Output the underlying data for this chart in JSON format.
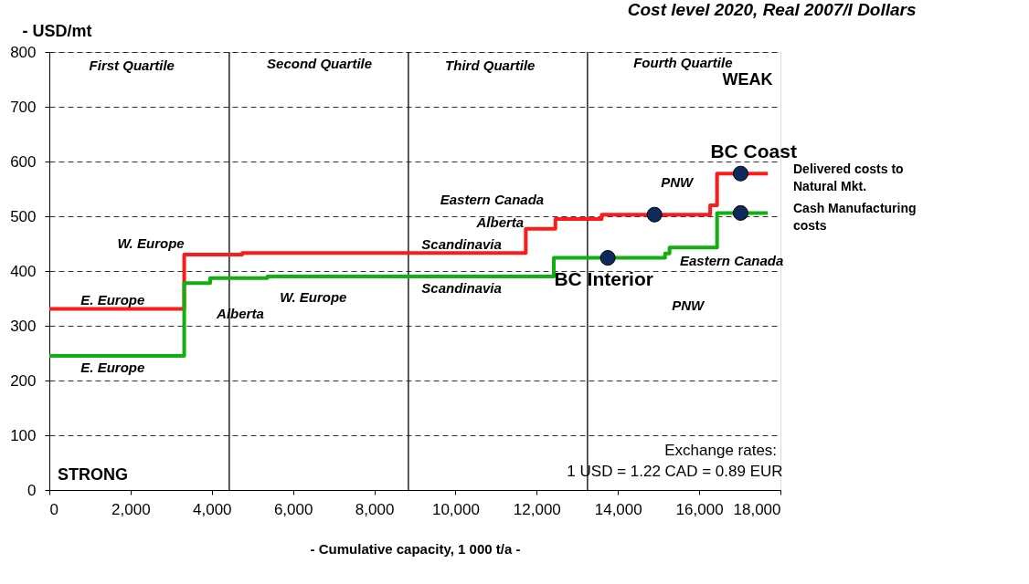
{
  "chart_data": {
    "type": "step",
    "subtitle": "Cost level 2020, Real 2007/I Dollars",
    "ylabel": "- USD/mt",
    "xlabel": "- Cumulative capacity, 1 000 t/a -",
    "xlim": [
      0,
      18000
    ],
    "ylim": [
      0,
      800
    ],
    "xticks": [
      0,
      {
        "value": 2000,
        "label": "2,000"
      },
      {
        "value": 4000,
        "label": "4,000"
      },
      {
        "value": 6000,
        "label": "6,000"
      },
      {
        "value": 8000,
        "label": "8,000"
      },
      {
        "value": 10000,
        "label": "10,000"
      },
      {
        "value": 12000,
        "label": "12,000"
      },
      {
        "value": 14000,
        "label": "14,000"
      },
      {
        "value": 16000,
        "label": "16,000"
      },
      {
        "value": 18000,
        "label": "18,000"
      }
    ],
    "yticks": [
      0,
      100,
      200,
      300,
      400,
      500,
      600,
      700,
      800
    ],
    "grid": "y",
    "legend": false,
    "line_style": "solid",
    "series": [
      {
        "name": "Delivered costs to Natural Mkt.",
        "color": "#ff1a1a",
        "x": [
          0,
          3320,
          4750,
          11730,
          12460,
          13600,
          16270,
          16440,
          17690
        ],
        "values": [
          331,
          430,
          433,
          477,
          495,
          503,
          520,
          578,
          578
        ]
      },
      {
        "name": "Cash Manufacturing costs",
        "color": "#10b010",
        "x": [
          0,
          3320,
          3960,
          5370,
          12420,
          15160,
          15270,
          16440,
          17690
        ],
        "values": [
          245,
          378,
          387,
          390,
          424,
          432,
          443,
          506,
          506
        ]
      },
      {
        "type": "scatter",
        "marker": "circle",
        "color": "#0e2a5c",
        "x": [
          13750,
          14900,
          17020,
          17020
        ],
        "values": [
          424,
          503,
          578,
          506
        ]
      }
    ],
    "ref_lines": [
      {
        "axis": "x",
        "value": 4430,
        "color": "#000000"
      },
      {
        "axis": "x",
        "value": 8840,
        "color": "#000000"
      },
      {
        "axis": "x",
        "value": 13250,
        "color": "#000000"
      }
    ],
    "annotations": [
      "First Quartile",
      "Second Quartile",
      "Third Quartile",
      "Fourth Quartile",
      "WEAK",
      "STRONG",
      "Exchange rates:",
      "1 USD = 1.22 CAD = 0.89 EUR",
      "E. Europe",
      "E. Europe",
      "W. Europe",
      "Alberta",
      "W. Europe",
      "Scandinavia",
      "Scandinavia",
      "Eastern Canada",
      "Alberta",
      "BC Interior",
      "PNW",
      "Eastern Canada",
      "PNW",
      "BC Coast"
    ]
  }
}
